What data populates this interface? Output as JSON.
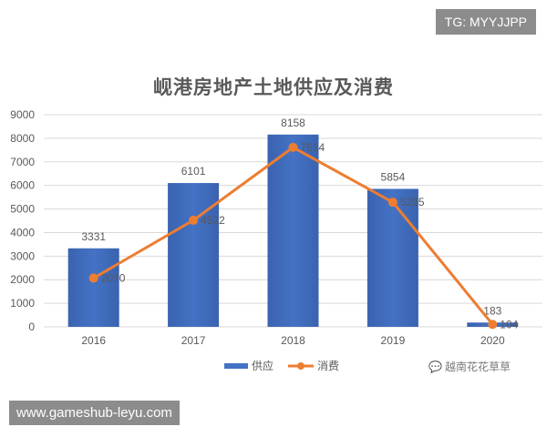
{
  "badge": "TG: MYYJJPP",
  "website": "www.gameshub-leyu.com",
  "watermark": {
    "icon": "wechat-icon",
    "text": "越南花花草草"
  },
  "colors": {
    "bar": "#4472c4",
    "line": "#ed7d31",
    "text": "#595959",
    "grid": "#d9d9d9"
  },
  "chart_data": {
    "type": "bar",
    "title": "岘港房地产土地供应及消费",
    "categories": [
      "2016",
      "2017",
      "2018",
      "2019",
      "2020"
    ],
    "series": [
      {
        "name": "供应",
        "type": "bar",
        "values": [
          3331,
          6101,
          8158,
          5854,
          183
        ]
      },
      {
        "name": "消费",
        "type": "line",
        "values": [
          2070,
          4522,
          7614,
          5285,
          104
        ]
      }
    ],
    "ylim": [
      0,
      9000
    ],
    "yticks": [
      0,
      1000,
      2000,
      3000,
      4000,
      5000,
      6000,
      7000,
      8000,
      9000
    ],
    "grid": true,
    "legend": "bottom"
  }
}
